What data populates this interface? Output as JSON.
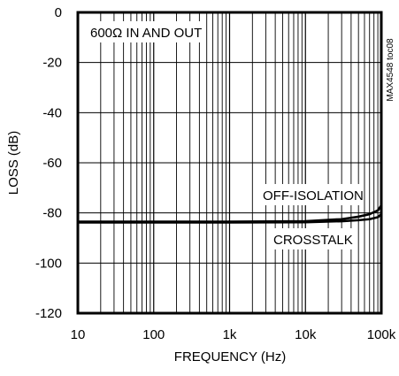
{
  "chart_data": {
    "type": "line",
    "title": "",
    "xlabel": "FREQUENCY (Hz)",
    "ylabel": "LOSS (dB)",
    "x_scale": "log",
    "xlim": [
      10,
      100000
    ],
    "ylim": [
      -120,
      0
    ],
    "grid": true,
    "x_ticks": [
      {
        "value": 10,
        "label": "10"
      },
      {
        "value": 100,
        "label": "100"
      },
      {
        "value": 1000,
        "label": "1k"
      },
      {
        "value": 10000,
        "label": "10k"
      },
      {
        "value": 100000,
        "label": "100k"
      }
    ],
    "y_ticks": [
      {
        "value": 0,
        "label": "0"
      },
      {
        "value": -20,
        "label": "-20"
      },
      {
        "value": -40,
        "label": "-40"
      },
      {
        "value": -60,
        "label": "-60"
      },
      {
        "value": -80,
        "label": "-80"
      },
      {
        "value": -100,
        "label": "-100"
      },
      {
        "value": -120,
        "label": "-120"
      }
    ],
    "annotation": "600Ω IN AND OUT",
    "side_label": "MAX4548 toc08",
    "series": [
      {
        "name": "OFF-ISOLATION",
        "x": [
          10,
          1000,
          10000,
          30000,
          50000,
          70000,
          90000,
          100000
        ],
        "y": [
          -83.5,
          -83.5,
          -83.3,
          -82.5,
          -81.5,
          -80.5,
          -79,
          -77
        ]
      },
      {
        "name": "CROSSTALK",
        "x": [
          10,
          1000,
          10000,
          30000,
          50000,
          70000,
          90000,
          100000
        ],
        "y": [
          -83.8,
          -83.8,
          -83.7,
          -83.3,
          -82.9,
          -82.5,
          -81.7,
          -80.5
        ]
      }
    ]
  }
}
